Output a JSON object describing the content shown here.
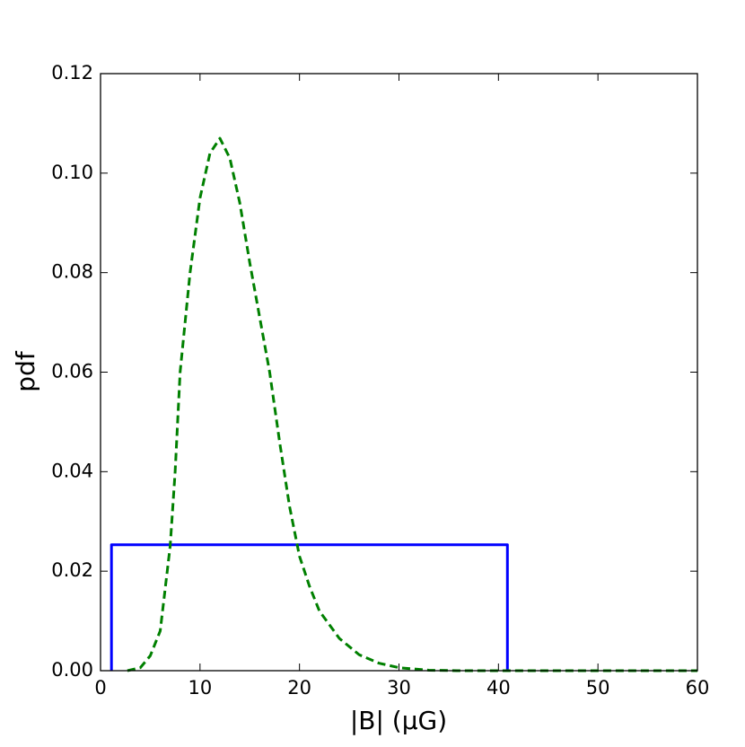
{
  "chart_data": {
    "type": "line",
    "xlabel": "|B| (μG)",
    "ylabel": "pdf",
    "xlim": [
      0,
      60
    ],
    "ylim": [
      0,
      0.12
    ],
    "xticks": [
      0,
      10,
      20,
      30,
      40,
      50,
      60
    ],
    "yticks": [
      {
        "value": 0,
        "label": "0.00"
      },
      {
        "value": 0.02,
        "label": "0.02"
      },
      {
        "value": 0.04,
        "label": "0.04"
      },
      {
        "value": 0.06,
        "label": "0.06"
      },
      {
        "value": 0.08,
        "label": "0.08"
      },
      {
        "value": 0.1,
        "label": "0.10"
      },
      {
        "value": 0.12,
        "label": "0.12"
      }
    ],
    "grid": false,
    "series": [
      {
        "color": "#0000ff",
        "dash": "solid",
        "x": [
          1.1,
          1.1,
          40.9,
          40.9
        ],
        "values": [
          0,
          0.0253,
          0.0253,
          0
        ]
      },
      {
        "color": "#008000",
        "dash": "dashed",
        "x": [
          2.7,
          4,
          5,
          6,
          7,
          7.5,
          8,
          9,
          10,
          11,
          12,
          13,
          14,
          15,
          16,
          17,
          18,
          19,
          20,
          21,
          22,
          24,
          26,
          28,
          30,
          33,
          36,
          60
        ],
        "values": [
          0,
          0.0006,
          0.003,
          0.008,
          0.025,
          0.04,
          0.06,
          0.08,
          0.095,
          0.104,
          0.107,
          0.103,
          0.094,
          0.082,
          0.071,
          0.06,
          0.046,
          0.033,
          0.023,
          0.017,
          0.012,
          0.0065,
          0.0032,
          0.0015,
          0.0006,
          0.0001,
          0,
          0
        ]
      }
    ]
  }
}
